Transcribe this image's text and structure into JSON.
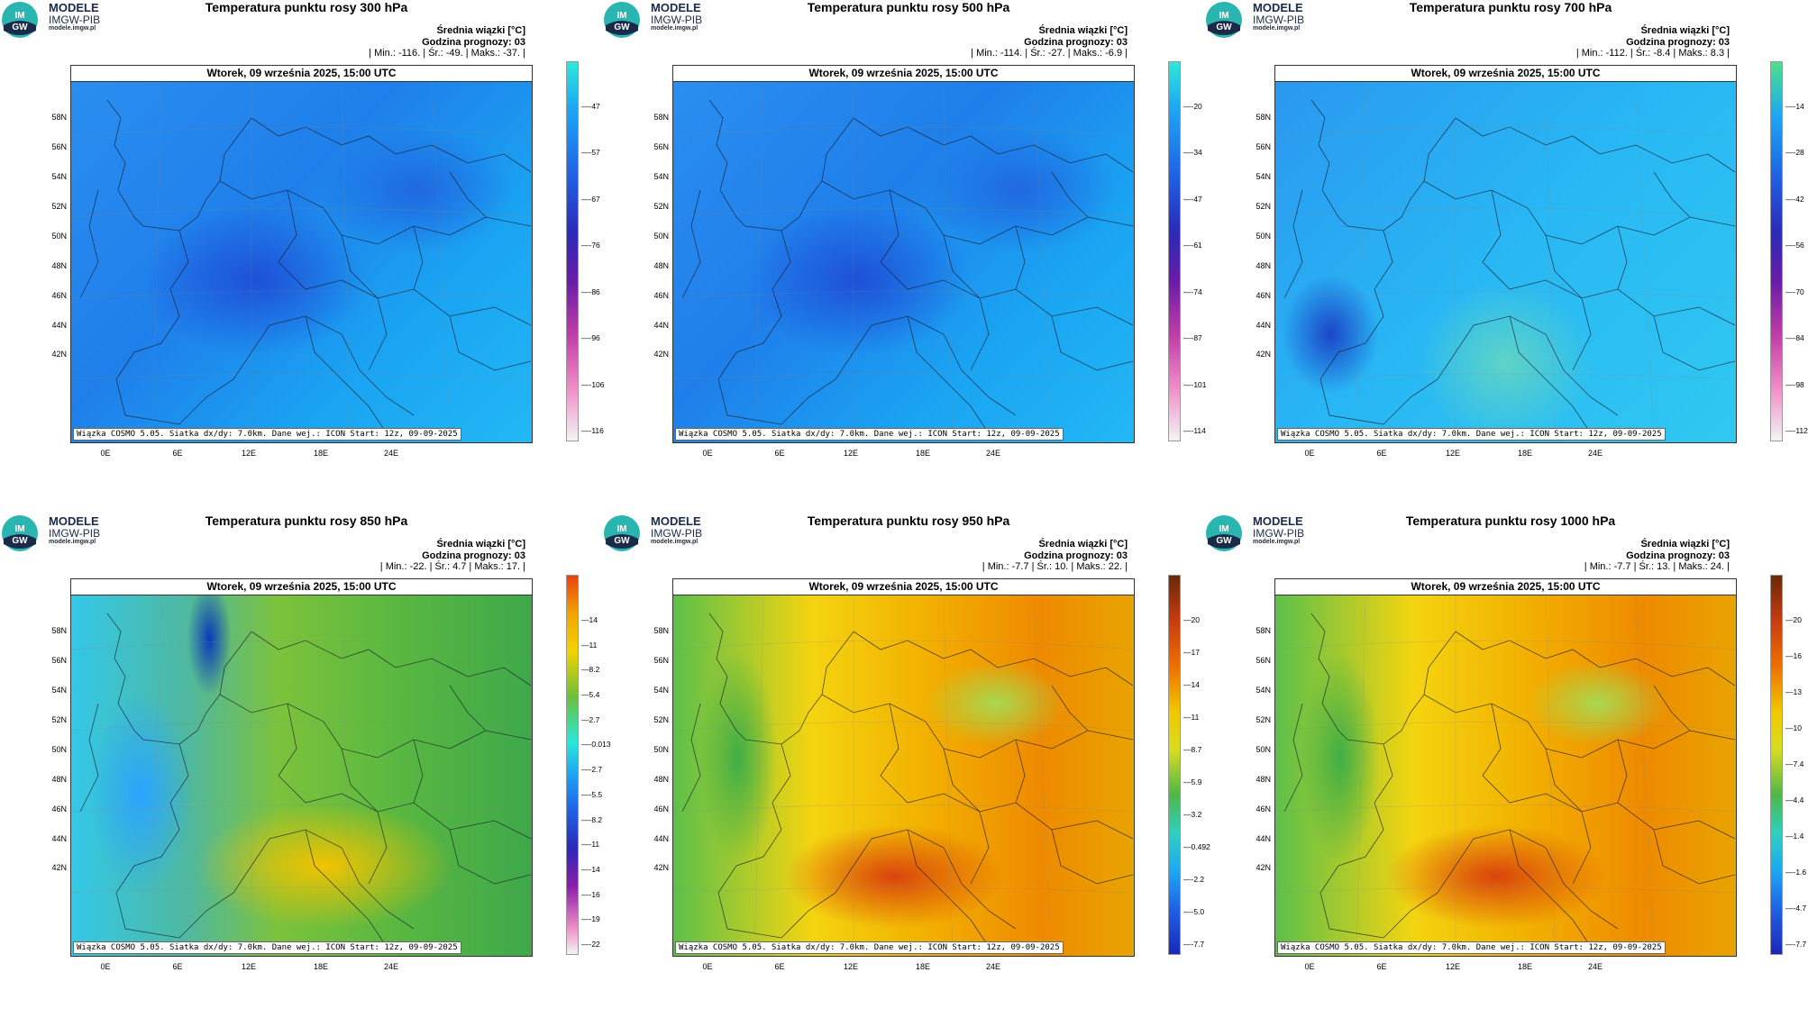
{
  "brand": {
    "line1": "MODELE",
    "line2": "IMGW-PIB",
    "line3": "modele.imgw.pl",
    "logo_text": "IM GW"
  },
  "common": {
    "date_line": "Wtorek, 09 września 2025, 15:00 UTC",
    "forecast_hour": "Godzina prognozy: 03",
    "mean_label": "Średnia wiązki [°C]",
    "footer": "Wiązka COSMO 5.05. Siatka dx/dy: 7.0km. Dane wej.: ICON Start: 12z, 09-09-2025",
    "lat_labels": [
      "58N",
      "56N",
      "54N",
      "52N",
      "50N",
      "48N",
      "46N",
      "44N",
      "42N"
    ],
    "lon_labels": [
      "0E",
      "6E",
      "12E",
      "18E",
      "24E"
    ]
  },
  "panels": [
    {
      "title": "Temperatura punktu rosy 300 hPa",
      "stats": "| Min.:  -116. | Śr.:  -49. | Maks.:  -37. |",
      "colorbar": [
        "-47",
        "-57",
        "-67",
        "-76",
        "-86",
        "-96",
        "-106",
        "-116"
      ],
      "scheme": "cold"
    },
    {
      "title": "Temperatura punktu rosy 500 hPa",
      "stats": "| Min.:  -114. | Śr.:  -27. | Maks.:  -6.9 |",
      "colorbar": [
        "-20",
        "-34",
        "-47",
        "-61",
        "-74",
        "-87",
        "-101",
        "-114"
      ],
      "scheme": "cold"
    },
    {
      "title": "Temperatura punktu rosy 700 hPa",
      "stats": "| Min.:  -112. | Śr.:  -8.4 | Maks.:  8.3 |",
      "colorbar": [
        "-14",
        "-28",
        "-42",
        "-56",
        "-70",
        "-84",
        "-98",
        "-112"
      ],
      "scheme": "cool"
    },
    {
      "title": "Temperatura punktu rosy 850 hPa",
      "stats": "| Min.:  -22. | Śr.:  4.7 | Maks.:  17. |",
      "colorbar": [
        "14",
        "11",
        "8.2",
        "5.4",
        "2.7",
        "-0.013",
        "-2.7",
        "-5.5",
        "-8.2",
        "-11",
        "-14",
        "-16",
        "-19",
        "-22"
      ],
      "scheme": "mid"
    },
    {
      "title": "Temperatura punktu rosy 950 hPa",
      "stats": "| Min.:  -7.7 | Śr.:  10. | Maks.:  22. |",
      "colorbar": [
        "20",
        "17",
        "14",
        "11",
        "8.7",
        "5.9",
        "3.2",
        "0.492",
        "-2.2",
        "-5.0",
        "-7.7"
      ],
      "scheme": "warm"
    },
    {
      "title": "Temperatura punktu rosy 1000 hPa",
      "stats": "| Min.:  -7.7 | Śr.:  13. | Maks.:  24. |",
      "colorbar": [
        "20",
        "16",
        "13",
        "10",
        "7.4",
        "4.4",
        "1.4",
        "-1.6",
        "-4.7",
        "-7.7"
      ],
      "scheme": "warm"
    }
  ]
}
